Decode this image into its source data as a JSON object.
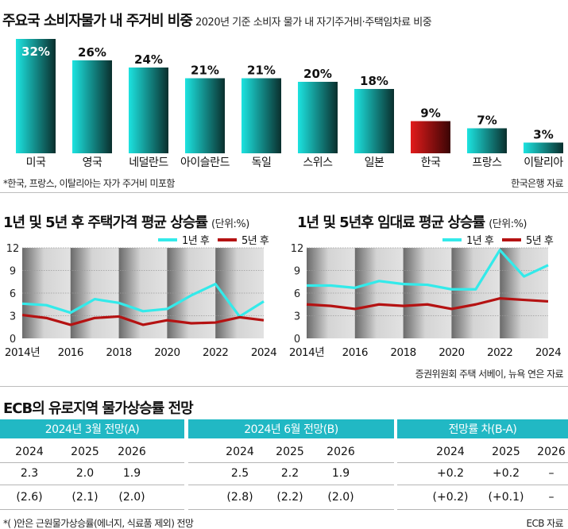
{
  "chart_data": [
    {
      "type": "bar",
      "title": "주요국 소비자물가 내 주거비 비중",
      "subtitle": "2020년 기준 소비자 물가 내 자기주거비·주택임차료 비중",
      "categories": [
        "미국",
        "영국",
        "네덜란드",
        "아이슬란드",
        "독일",
        "스위스",
        "일본",
        "한국",
        "프랑스",
        "이탈리아"
      ],
      "values": [
        32,
        26,
        24,
        21,
        21,
        20,
        18,
        9,
        7,
        3
      ],
      "value_labels": [
        "32%",
        "26%",
        "24%",
        "21%",
        "21%",
        "20%",
        "18%",
        "9%",
        "7%",
        "3%"
      ],
      "highlight_category": "한국",
      "colors": {
        "bar": "#1ce3e0",
        "bar_dark": "#0a2f2d",
        "highlight": "#e21b1b",
        "highlight_dark": "#3a0505"
      },
      "footnote": "*한국, 프랑스, 이탈리아는 자가 주거비 미포함",
      "source": "한국은행 자료"
    },
    {
      "type": "line",
      "title": "1년 및 5년 후 주택가격 평균 상승률",
      "unit": "(단위:%)",
      "x": [
        2014,
        2015,
        2016,
        2017,
        2018,
        2019,
        2020,
        2021,
        2022,
        2023,
        2024
      ],
      "x_ticks": [
        "2014년",
        "2016",
        "2018",
        "2020",
        "2022",
        "2024"
      ],
      "y_ticks": [
        "0",
        "3",
        "6",
        "9",
        "12"
      ],
      "ylim": [
        0,
        12
      ],
      "legend": "top-right",
      "series": [
        {
          "name": "1년 후",
          "color": "#33eaea",
          "values": [
            4.6,
            4.4,
            3.4,
            5.2,
            4.7,
            3.6,
            3.9,
            5.7,
            7.2,
            2.9,
            4.9
          ]
        },
        {
          "name": "5년 후",
          "color": "#b51212",
          "values": [
            3.1,
            2.7,
            1.8,
            2.7,
            2.9,
            1.8,
            2.4,
            2.0,
            2.1,
            2.8,
            2.4
          ]
        }
      ]
    },
    {
      "type": "line",
      "title": "1년 및 5년후 임대료 평균 상승률",
      "unit": "(단위:%)",
      "x": [
        2014,
        2015,
        2016,
        2017,
        2018,
        2019,
        2020,
        2021,
        2022,
        2023,
        2024
      ],
      "x_ticks": [
        "2014년",
        "2016",
        "2018",
        "2020",
        "2022",
        "2024"
      ],
      "y_ticks": [
        "0",
        "3",
        "6",
        "9",
        "12"
      ],
      "ylim": [
        0,
        12
      ],
      "legend": "top-right",
      "series": [
        {
          "name": "1년 후",
          "color": "#33eaea",
          "values": [
            7.0,
            7.0,
            6.7,
            7.6,
            7.2,
            7.1,
            6.5,
            6.5,
            11.7,
            8.2,
            9.7
          ]
        },
        {
          "name": "5년 후",
          "color": "#b51212",
          "values": [
            4.5,
            4.3,
            3.9,
            4.5,
            4.3,
            4.5,
            3.9,
            4.5,
            5.3,
            5.1,
            4.9
          ]
        }
      ],
      "source": "증권위원회 주택 서베이, 뉴욕 연은 자료"
    },
    {
      "type": "table",
      "title": "ECB의 유로지역 물가상승률 전망",
      "groups": [
        {
          "label": "2024년 3월 전망(A)",
          "years": [
            "2024",
            "2025",
            "2026"
          ],
          "row1": [
            "2.3",
            "2.0",
            "1.9"
          ],
          "row2": [
            "(2.6)",
            "(2.1)",
            "(2.0)"
          ]
        },
        {
          "label": "2024년 6월 전망(B)",
          "years": [
            "2024",
            "2025",
            "2026"
          ],
          "row1": [
            "2.5",
            "2.2",
            "1.9"
          ],
          "row2": [
            "(2.8)",
            "(2.2)",
            "(2.0)"
          ]
        },
        {
          "label": "전망률 차(B-A)",
          "years": [
            "2024",
            "2025",
            "2026"
          ],
          "row1": [
            "+0.2",
            "+0.2",
            "–"
          ],
          "row2": [
            "(+0.2)",
            "(+0.1)",
            "–"
          ]
        }
      ],
      "colors": {
        "header": "#21b8c4"
      },
      "footnote": "*( )안은 근원물가상승률(에너지, 식료품 제외) 전망",
      "source": "ECB 자료"
    }
  ]
}
